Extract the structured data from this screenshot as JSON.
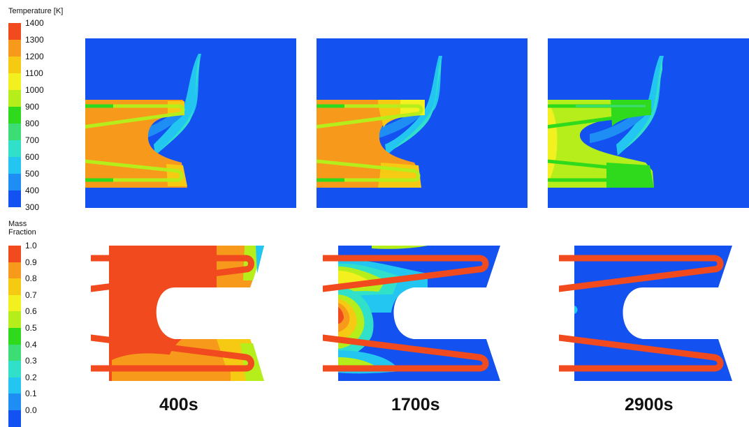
{
  "temperature_legend": {
    "title": "Temperature [K]",
    "ticks": [
      "1400",
      "1300",
      "1200",
      "1100",
      "1000",
      "900",
      "800",
      "700",
      "600",
      "500",
      "400",
      "300"
    ],
    "colors": [
      "#f04a1e",
      "#f79a1c",
      "#f6c912",
      "#f2f01e",
      "#b6ee1c",
      "#2fda1c",
      "#3bdd74",
      "#31e0c8",
      "#22c6f0",
      "#1e8ef4",
      "#1352f0"
    ]
  },
  "mass_fraction_legend": {
    "title_line1": "Mass",
    "title_line2": "Fraction",
    "ticks": [
      "1.0",
      "0.9",
      "0.8",
      "0.7",
      "0.6",
      "0.5",
      "0.4",
      "0.3",
      "0.2",
      "0.1",
      "0.0"
    ],
    "colors": [
      "#f04a1e",
      "#f79a1c",
      "#f6c912",
      "#f2f01e",
      "#b6ee1c",
      "#2fda1c",
      "#3bdd74",
      "#31e0c8",
      "#22c6f0",
      "#1e8ef4",
      "#1352f0"
    ]
  },
  "time_labels": [
    "400s",
    "1700s",
    "2900s"
  ],
  "palette": {
    "blue": "#1352f0",
    "light_blue": "#22c6f0",
    "cyan": "#31e0c8",
    "green": "#2fda1c",
    "lime": "#b6ee1c",
    "yellow": "#f2f01e",
    "orange": "#f79a1c",
    "red": "#f04a1e"
  }
}
